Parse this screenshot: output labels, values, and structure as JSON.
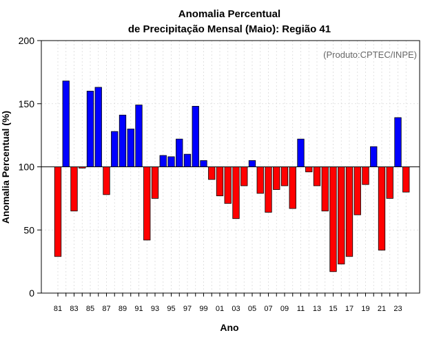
{
  "chart_data": {
    "type": "bar",
    "title": [
      "Anomalia Percentual",
      "de Precipitação Mensal (Maio): Região 41"
    ],
    "xlabel": "Ano",
    "ylabel": "Anomalia Percentual (%)",
    "annotation": "(Produto:CPTEC/INPE)",
    "baseline": 100,
    "ylim": [
      0,
      200
    ],
    "yticks": [
      0,
      50,
      100,
      150,
      200
    ],
    "grid": true,
    "colors": {
      "above": "#0000ff",
      "below": "#ff0000",
      "edge": "#000000"
    },
    "categories": [
      "81",
      "82",
      "83",
      "84",
      "85",
      "86",
      "87",
      "88",
      "89",
      "90",
      "91",
      "92",
      "93",
      "94",
      "95",
      "96",
      "97",
      "98",
      "99",
      "00",
      "01",
      "02",
      "03",
      "04",
      "05",
      "06",
      "07",
      "08",
      "09",
      "10",
      "11",
      "12",
      "13",
      "14",
      "15",
      "16",
      "17",
      "18",
      "19",
      "20",
      "21",
      "22",
      "23",
      "24"
    ],
    "xtick_labels": [
      "81",
      "83",
      "85",
      "87",
      "89",
      "91",
      "93",
      "95",
      "97",
      "99",
      "01",
      "03",
      "05",
      "07",
      "09",
      "11",
      "13",
      "15",
      "17",
      "19",
      "21",
      "23"
    ],
    "values": [
      29,
      168,
      65,
      99,
      160,
      163,
      78,
      128,
      141,
      130,
      149,
      42,
      75,
      109,
      108,
      122,
      110,
      148,
      105,
      90,
      77,
      71,
      59,
      85,
      105,
      79,
      64,
      82,
      85,
      67,
      122,
      96,
      85,
      65,
      17,
      23,
      29,
      62,
      86,
      116,
      34,
      75,
      139,
      80
    ]
  }
}
